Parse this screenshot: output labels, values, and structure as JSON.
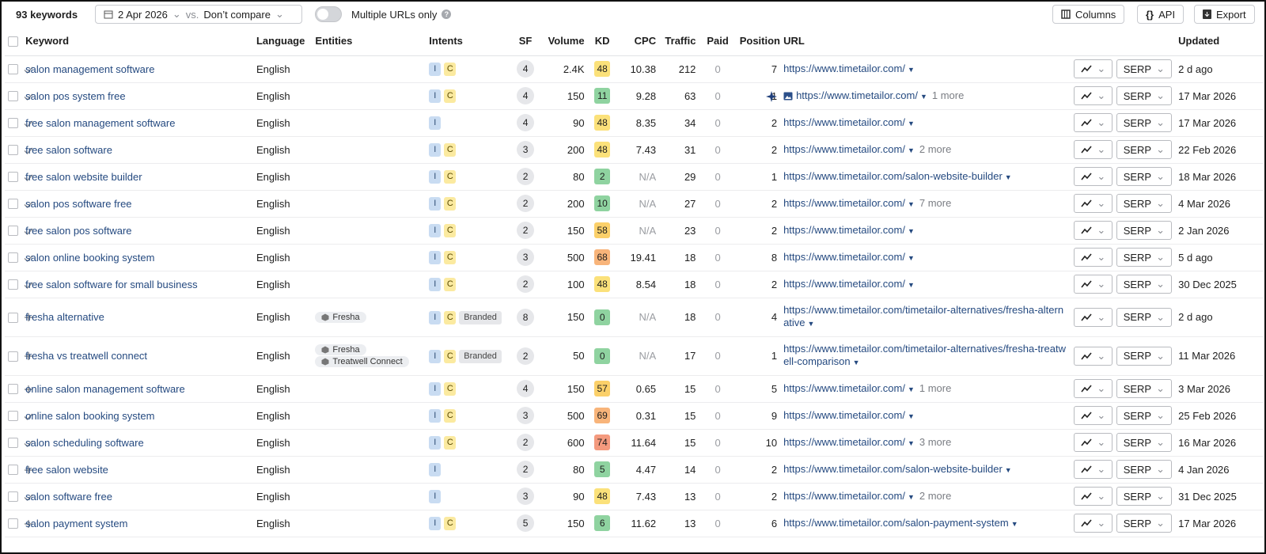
{
  "toolbar": {
    "keyword_count": "93 keywords",
    "date": "2 Apr 2026",
    "vs": "vs.",
    "compare": "Don’t compare",
    "toggle_label": "Multiple URLs only",
    "buttons": [
      "Columns",
      "API",
      "Export"
    ]
  },
  "table": {
    "headers": [
      "Keyword",
      "Language",
      "Entities",
      "Intents",
      "SF",
      "Volume",
      "KD",
      "CPC",
      "Traffic",
      "Paid",
      "Position",
      "URL",
      "Updated"
    ],
    "serp_label": "SERP",
    "rows": [
      {
        "tracked": true,
        "keyword": "salon management software",
        "language": "English",
        "entities": [],
        "intents": [
          "I",
          "C"
        ],
        "sf": 4,
        "volume": "2.4K",
        "kd": 48,
        "cpc": 10.38,
        "traffic": 212,
        "paid": 0,
        "position": 7,
        "url": "https://www.timetailor.com/",
        "updated": "2 d ago"
      },
      {
        "tracked": true,
        "keyword": "salon pos system free",
        "language": "English",
        "entities": [],
        "intents": [
          "I",
          "C"
        ],
        "sf": 4,
        "volume": 150,
        "kd": 11,
        "cpc": 9.28,
        "traffic": 63,
        "paid": 0,
        "position": 1,
        "ai_overview": true,
        "url": "https://www.timetailor.com/",
        "more": "1 more",
        "updated": "17 Mar 2026"
      },
      {
        "tracked": true,
        "keyword": "free salon management software",
        "language": "English",
        "entities": [],
        "intents": [
          "I"
        ],
        "sf": 4,
        "volume": 90,
        "kd": 48,
        "cpc": 8.35,
        "traffic": 34,
        "paid": 0,
        "position": 2,
        "url": "https://www.timetailor.com/",
        "updated": "17 Mar 2026"
      },
      {
        "tracked": true,
        "keyword": "free salon software",
        "language": "English",
        "entities": [],
        "intents": [
          "I",
          "C"
        ],
        "sf": 3,
        "volume": 200,
        "kd": 48,
        "cpc": 7.43,
        "traffic": 31,
        "paid": 0,
        "position": 2,
        "url": "https://www.timetailor.com/",
        "more": "2 more",
        "updated": "22 Feb 2026"
      },
      {
        "tracked": true,
        "keyword": "free salon website builder",
        "language": "English",
        "entities": [],
        "intents": [
          "I",
          "C"
        ],
        "sf": 2,
        "volume": 80,
        "kd": 2,
        "cpc": "N/A",
        "traffic": 29,
        "paid": 0,
        "position": 1,
        "url": "https://www.timetailor.com/salon-website-builder",
        "updated": "18 Mar 2026"
      },
      {
        "tracked": true,
        "keyword": "salon pos software free",
        "language": "English",
        "entities": [],
        "intents": [
          "I",
          "C"
        ],
        "sf": 2,
        "volume": 200,
        "kd": 10,
        "cpc": "N/A",
        "traffic": 27,
        "paid": 0,
        "position": 2,
        "url": "https://www.timetailor.com/",
        "more": "7 more",
        "updated": "4 Mar 2026"
      },
      {
        "tracked": true,
        "keyword": "free salon pos software",
        "language": "English",
        "entities": [],
        "intents": [
          "I",
          "C"
        ],
        "sf": 2,
        "volume": 150,
        "kd": 58,
        "cpc": "N/A",
        "traffic": 23,
        "paid": 0,
        "position": 2,
        "url": "https://www.timetailor.com/",
        "updated": "2 Jan 2026"
      },
      {
        "tracked": true,
        "keyword": "salon online booking system",
        "language": "English",
        "entities": [],
        "intents": [
          "I",
          "C"
        ],
        "sf": 3,
        "volume": 500,
        "kd": 68,
        "cpc": 19.41,
        "traffic": 18,
        "paid": 0,
        "position": 8,
        "url": "https://www.timetailor.com/",
        "updated": "5 d ago"
      },
      {
        "tracked": true,
        "keyword": "free salon software for small business",
        "language": "English",
        "entities": [],
        "intents": [
          "I",
          "C"
        ],
        "sf": 2,
        "volume": 100,
        "kd": 48,
        "cpc": 8.54,
        "traffic": 18,
        "paid": 0,
        "position": 2,
        "url": "https://www.timetailor.com/",
        "updated": "30 Dec 2025"
      },
      {
        "tracked": false,
        "keyword": "fresha alternative",
        "language": "English",
        "entities": [
          "Fresha"
        ],
        "intents": [
          "I",
          "C",
          "Branded"
        ],
        "sf": 8,
        "volume": 150,
        "kd": 0,
        "cpc": "N/A",
        "traffic": 18,
        "paid": 0,
        "position": 4,
        "url": "https://www.timetailor.com/timetailor-alternatives/fresha-alternative",
        "updated": "2 d ago"
      },
      {
        "tracked": false,
        "keyword": "fresha vs treatwell connect",
        "language": "English",
        "entities": [
          "Fresha",
          "Treatwell Connect"
        ],
        "intents": [
          "I",
          "C",
          "Branded"
        ],
        "sf": 2,
        "volume": 50,
        "kd": 0,
        "cpc": "N/A",
        "traffic": 17,
        "paid": 0,
        "position": 1,
        "url": "https://www.timetailor.com/timetailor-alternatives/fresha-treatwell-comparison",
        "updated": "11 Mar 2026"
      },
      {
        "tracked": false,
        "keyword": "online salon management software",
        "language": "English",
        "entities": [],
        "intents": [
          "I",
          "C"
        ],
        "sf": 4,
        "volume": 150,
        "kd": 57,
        "cpc": 0.65,
        "traffic": 15,
        "paid": 0,
        "position": 5,
        "url": "https://www.timetailor.com/",
        "more": "1 more",
        "updated": "3 Mar 2026"
      },
      {
        "tracked": true,
        "keyword": "online salon booking system",
        "language": "English",
        "entities": [],
        "intents": [
          "I",
          "C"
        ],
        "sf": 3,
        "volume": 500,
        "kd": 69,
        "cpc": 0.31,
        "traffic": 15,
        "paid": 0,
        "position": 9,
        "url": "https://www.timetailor.com/",
        "updated": "25 Feb 2026"
      },
      {
        "tracked": true,
        "keyword": "salon scheduling software",
        "language": "English",
        "entities": [],
        "intents": [
          "I",
          "C"
        ],
        "sf": 2,
        "volume": 600,
        "kd": 74,
        "cpc": 11.64,
        "traffic": 15,
        "paid": 0,
        "position": 10,
        "url": "https://www.timetailor.com/",
        "more": "3 more",
        "updated": "16 Mar 2026"
      },
      {
        "tracked": false,
        "keyword": "free salon website",
        "language": "English",
        "entities": [],
        "intents": [
          "I"
        ],
        "sf": 2,
        "volume": 80,
        "kd": 5,
        "cpc": 4.47,
        "traffic": 14,
        "paid": 0,
        "position": 2,
        "url": "https://www.timetailor.com/salon-website-builder",
        "updated": "4 Jan 2026"
      },
      {
        "tracked": true,
        "keyword": "salon software free",
        "language": "English",
        "entities": [],
        "intents": [
          "I"
        ],
        "sf": 3,
        "volume": 90,
        "kd": 48,
        "cpc": 7.43,
        "traffic": 13,
        "paid": 0,
        "position": 2,
        "url": "https://www.timetailor.com/",
        "more": "2 more",
        "updated": "31 Dec 2025"
      },
      {
        "tracked": false,
        "keyword": "salon payment system",
        "language": "English",
        "entities": [],
        "intents": [
          "I",
          "C"
        ],
        "sf": 5,
        "volume": 150,
        "kd": 6,
        "cpc": 11.62,
        "traffic": 13,
        "paid": 0,
        "position": 6,
        "url": "https://www.timetailor.com/salon-payment-system",
        "updated": "17 Mar 2026"
      }
    ]
  }
}
